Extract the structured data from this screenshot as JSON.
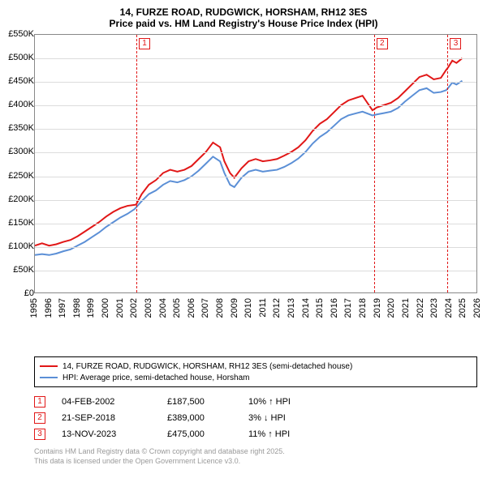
{
  "title": {
    "line1": "14, FURZE ROAD, RUDGWICK, HORSHAM, RH12 3ES",
    "line2": "Price paid vs. HM Land Registry's House Price Index (HPI)"
  },
  "chart": {
    "type": "line",
    "background_color": "#ffffff",
    "grid_color": "#dcdcdc",
    "border_color": "#888888",
    "ylim": [
      0,
      550000
    ],
    "ytick_step": 50000,
    "ytick_labels": [
      "£0",
      "£50K",
      "£100K",
      "£150K",
      "£200K",
      "£250K",
      "£300K",
      "£350K",
      "£400K",
      "£450K",
      "£500K",
      "£550K"
    ],
    "xlim": [
      1995,
      2026
    ],
    "xtick_step": 1,
    "xtick_labels": [
      "1995",
      "1996",
      "1997",
      "1998",
      "1999",
      "2000",
      "2001",
      "2002",
      "2003",
      "2004",
      "2005",
      "2006",
      "2007",
      "2008",
      "2009",
      "2010",
      "2011",
      "2012",
      "2013",
      "2014",
      "2015",
      "2016",
      "2017",
      "2018",
      "2019",
      "2020",
      "2021",
      "2022",
      "2023",
      "2024",
      "2025",
      "2026"
    ],
    "series": [
      {
        "name": "subject",
        "color": "#e11717",
        "width": 2,
        "data": [
          [
            1995,
            100000
          ],
          [
            1995.5,
            105000
          ],
          [
            1996,
            100000
          ],
          [
            1996.5,
            103000
          ],
          [
            1997,
            108000
          ],
          [
            1997.5,
            112000
          ],
          [
            1998,
            120000
          ],
          [
            1998.5,
            130000
          ],
          [
            1999,
            140000
          ],
          [
            1999.5,
            150000
          ],
          [
            2000,
            162000
          ],
          [
            2000.5,
            172000
          ],
          [
            2001,
            180000
          ],
          [
            2001.5,
            185000
          ],
          [
            2002.1,
            187500
          ],
          [
            2002.5,
            210000
          ],
          [
            2003,
            230000
          ],
          [
            2003.5,
            240000
          ],
          [
            2004,
            255000
          ],
          [
            2004.5,
            262000
          ],
          [
            2005,
            258000
          ],
          [
            2005.5,
            262000
          ],
          [
            2006,
            270000
          ],
          [
            2006.5,
            285000
          ],
          [
            2007,
            300000
          ],
          [
            2007.5,
            320000
          ],
          [
            2008,
            310000
          ],
          [
            2008.3,
            280000
          ],
          [
            2008.7,
            255000
          ],
          [
            2009,
            245000
          ],
          [
            2009.5,
            265000
          ],
          [
            2010,
            280000
          ],
          [
            2010.5,
            285000
          ],
          [
            2011,
            280000
          ],
          [
            2011.5,
            282000
          ],
          [
            2012,
            285000
          ],
          [
            2012.5,
            292000
          ],
          [
            2013,
            300000
          ],
          [
            2013.5,
            310000
          ],
          [
            2014,
            325000
          ],
          [
            2014.5,
            345000
          ],
          [
            2015,
            360000
          ],
          [
            2015.5,
            370000
          ],
          [
            2016,
            385000
          ],
          [
            2016.5,
            400000
          ],
          [
            2017,
            410000
          ],
          [
            2017.5,
            415000
          ],
          [
            2018,
            420000
          ],
          [
            2018.7,
            389000
          ],
          [
            2019,
            395000
          ],
          [
            2019.5,
            400000
          ],
          [
            2020,
            405000
          ],
          [
            2020.5,
            415000
          ],
          [
            2021,
            430000
          ],
          [
            2021.5,
            445000
          ],
          [
            2022,
            460000
          ],
          [
            2022.5,
            465000
          ],
          [
            2023,
            455000
          ],
          [
            2023.5,
            458000
          ],
          [
            2023.87,
            475000
          ],
          [
            2024,
            480000
          ],
          [
            2024.3,
            495000
          ],
          [
            2024.6,
            490000
          ],
          [
            2025,
            500000
          ]
        ]
      },
      {
        "name": "hpi",
        "color": "#5b8fd6",
        "width": 2,
        "data": [
          [
            1995,
            80000
          ],
          [
            1995.5,
            82000
          ],
          [
            1996,
            80000
          ],
          [
            1996.5,
            83000
          ],
          [
            1997,
            88000
          ],
          [
            1997.5,
            92000
          ],
          [
            1998,
            100000
          ],
          [
            1998.5,
            108000
          ],
          [
            1999,
            118000
          ],
          [
            1999.5,
            128000
          ],
          [
            2000,
            140000
          ],
          [
            2000.5,
            150000
          ],
          [
            2001,
            160000
          ],
          [
            2001.5,
            168000
          ],
          [
            2002,
            178000
          ],
          [
            2002.5,
            195000
          ],
          [
            2003,
            210000
          ],
          [
            2003.5,
            218000
          ],
          [
            2004,
            230000
          ],
          [
            2004.5,
            238000
          ],
          [
            2005,
            235000
          ],
          [
            2005.5,
            240000
          ],
          [
            2006,
            248000
          ],
          [
            2006.5,
            260000
          ],
          [
            2007,
            275000
          ],
          [
            2007.5,
            290000
          ],
          [
            2008,
            280000
          ],
          [
            2008.3,
            255000
          ],
          [
            2008.7,
            230000
          ],
          [
            2009,
            225000
          ],
          [
            2009.5,
            245000
          ],
          [
            2010,
            258000
          ],
          [
            2010.5,
            262000
          ],
          [
            2011,
            258000
          ],
          [
            2011.5,
            260000
          ],
          [
            2012,
            262000
          ],
          [
            2012.5,
            268000
          ],
          [
            2013,
            276000
          ],
          [
            2013.5,
            286000
          ],
          [
            2014,
            300000
          ],
          [
            2014.5,
            318000
          ],
          [
            2015,
            332000
          ],
          [
            2015.5,
            342000
          ],
          [
            2016,
            356000
          ],
          [
            2016.5,
            370000
          ],
          [
            2017,
            378000
          ],
          [
            2017.5,
            382000
          ],
          [
            2018,
            386000
          ],
          [
            2018.7,
            378000
          ],
          [
            2019,
            380000
          ],
          [
            2019.5,
            383000
          ],
          [
            2020,
            386000
          ],
          [
            2020.5,
            394000
          ],
          [
            2021,
            408000
          ],
          [
            2021.5,
            420000
          ],
          [
            2022,
            432000
          ],
          [
            2022.5,
            436000
          ],
          [
            2023,
            426000
          ],
          [
            2023.5,
            428000
          ],
          [
            2023.87,
            432000
          ],
          [
            2024,
            436000
          ],
          [
            2024.3,
            448000
          ],
          [
            2024.6,
            444000
          ],
          [
            2025,
            452000
          ]
        ]
      }
    ],
    "events": [
      {
        "num": "1",
        "x": 2002.1,
        "color": "#e11717"
      },
      {
        "num": "2",
        "x": 2018.72,
        "color": "#e11717"
      },
      {
        "num": "3",
        "x": 2023.87,
        "color": "#e11717"
      }
    ]
  },
  "legend": {
    "items": [
      {
        "color": "#e11717",
        "label": "14, FURZE ROAD, RUDGWICK, HORSHAM, RH12 3ES (semi-detached house)"
      },
      {
        "color": "#5b8fd6",
        "label": "HPI: Average price, semi-detached house, Horsham"
      }
    ]
  },
  "events_table": [
    {
      "num": "1",
      "color": "#e11717",
      "date": "04-FEB-2002",
      "price": "£187,500",
      "delta": "10% ↑ HPI"
    },
    {
      "num": "2",
      "color": "#e11717",
      "date": "21-SEP-2018",
      "price": "£389,000",
      "delta": "3% ↓ HPI"
    },
    {
      "num": "3",
      "color": "#e11717",
      "date": "13-NOV-2023",
      "price": "£475,000",
      "delta": "11% ↑ HPI"
    }
  ],
  "footer": {
    "line1": "Contains HM Land Registry data © Crown copyright and database right 2025.",
    "line2": "This data is licensed under the Open Government Licence v3.0."
  }
}
